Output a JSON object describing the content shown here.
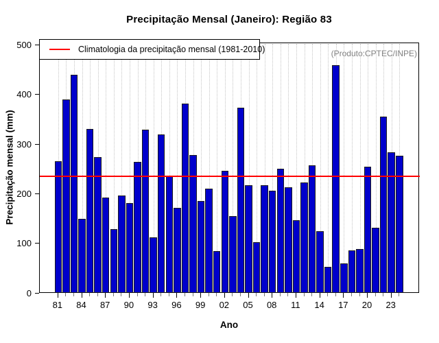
{
  "title": "Precipitação Mensal (Janeiro): Região 83",
  "watermark": "(Produto:CPTEC/INPE)",
  "legend": {
    "label": "Climatologia da precipitação mensal (1981-2010)"
  },
  "axes": {
    "x_label": "Ano",
    "y_label": "Precipitação mensal (mm)",
    "y_ticks": [
      0,
      100,
      200,
      300,
      400,
      500
    ],
    "x_labeled_every": 3
  },
  "chart_data": {
    "type": "bar",
    "title": "Precipitação Mensal (Janeiro): Região 83",
    "xlabel": "Ano",
    "ylabel": "Precipitação mensal (mm)",
    "ylim": [
      0,
      505
    ],
    "grid": "vertical-dotted",
    "legend_position": "top-left",
    "categories": [
      "1981",
      "1982",
      "1983",
      "1984",
      "1985",
      "1986",
      "1987",
      "1988",
      "1989",
      "1990",
      "1991",
      "1992",
      "1993",
      "1994",
      "1995",
      "1996",
      "1997",
      "1998",
      "1999",
      "2000",
      "2001",
      "2002",
      "2003",
      "2004",
      "2005",
      "2006",
      "2007",
      "2008",
      "2009",
      "2010",
      "2011",
      "2012",
      "2013",
      "2014",
      "2015",
      "2016",
      "2017",
      "2018",
      "2019",
      "2020",
      "2021",
      "2022",
      "2023",
      "2024"
    ],
    "x_tick_labels": [
      "81",
      "84",
      "87",
      "90",
      "93",
      "96",
      "99",
      "02",
      "05",
      "08",
      "11",
      "14",
      "17",
      "20",
      "23"
    ],
    "values": [
      266,
      390,
      440,
      150,
      331,
      274,
      192,
      129,
      196,
      182,
      265,
      329,
      112,
      320,
      235,
      172,
      382,
      278,
      185,
      210,
      85,
      246,
      155,
      373,
      217,
      102,
      217,
      206,
      251,
      213,
      147,
      223,
      257,
      124,
      52,
      459,
      60,
      86,
      88,
      255,
      131,
      356,
      284,
      277
    ],
    "climatology_line": 237,
    "colors": {
      "bar": "#0000CC",
      "bar_border": "#1a1a1a",
      "climatology": "#ff0000",
      "grid": "#c4c4c4",
      "watermark_text": "#808080"
    }
  }
}
